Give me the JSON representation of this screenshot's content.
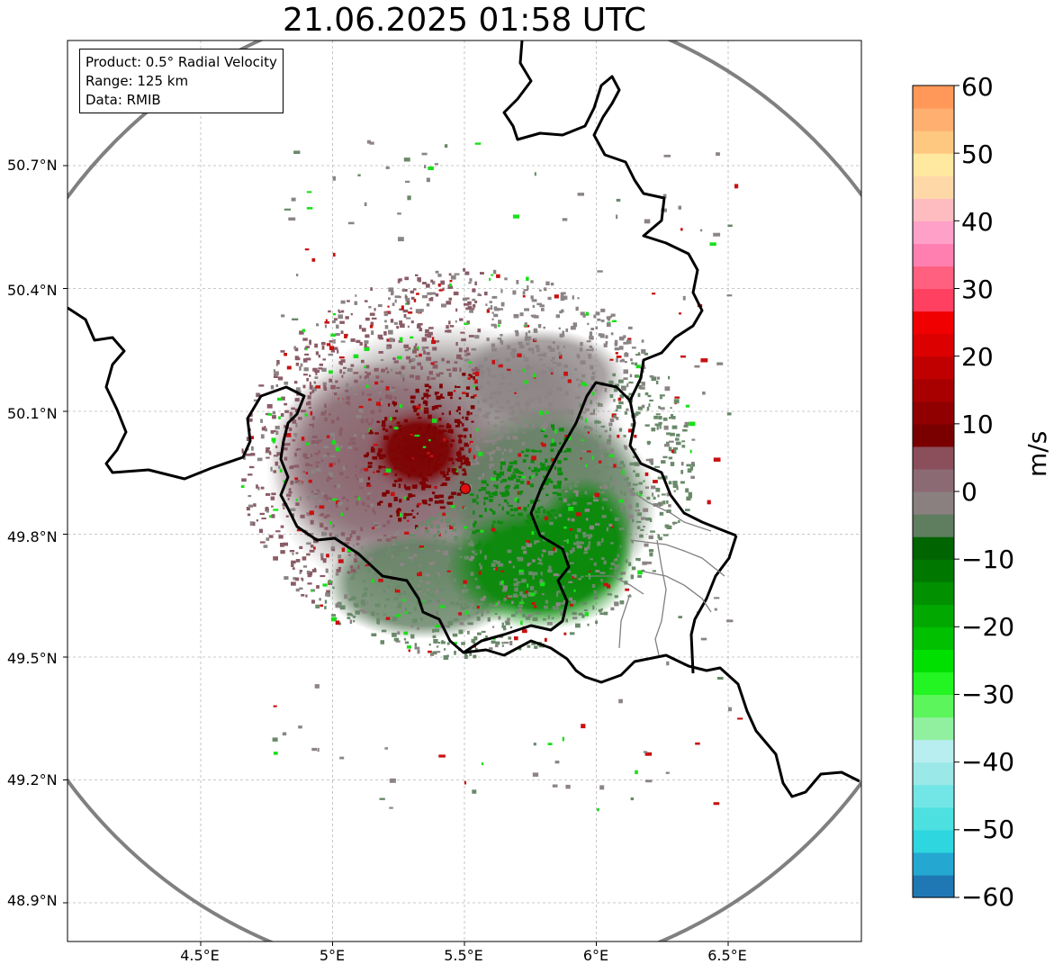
{
  "title": "21.06.2025 01:58 UTC",
  "info_box": {
    "product": "Product: 0.5° Radial Velocity",
    "range": "Range: 125 km",
    "data": "Data: RMIB"
  },
  "map_view": {
    "lon_range": [
      4.0,
      7.0
    ],
    "lat_range": [
      48.8,
      50.95
    ],
    "radar_site": {
      "lon": 5.5,
      "lat": 49.91,
      "marker_color": "#e01010"
    },
    "range_ring_color": "#808080",
    "border_color": "#000000",
    "subregion_border_color": "#808080",
    "grid": true
  },
  "axes": {
    "lat_ticks": [
      "50.7°N",
      "50.4°N",
      "50.1°N",
      "49.8°N",
      "49.5°N",
      "49.2°N",
      "48.9°N"
    ],
    "lon_ticks": [
      "4.5°E",
      "5°E",
      "5.5°E",
      "6°E",
      "6.5°E"
    ]
  },
  "colorbar": {
    "unit": "m/s",
    "ticks": [
      "60",
      "50",
      "40",
      "30",
      "20",
      "10",
      "0",
      "−10",
      "−20",
      "−30",
      "−40",
      "−50",
      "−60"
    ],
    "range": [
      -60,
      60
    ],
    "colors": [
      "#1f78b4",
      "#24a8d2",
      "#2ed6e0",
      "#4de0e0",
      "#72e6e6",
      "#9ae8e8",
      "#b8eef0",
      "#90f0a0",
      "#5cf55c",
      "#22f522",
      "#00e000",
      "#00c000",
      "#00a800",
      "#009000",
      "#007800",
      "#006400",
      "#5f7d5f",
      "#8a8080",
      "#8c6a74",
      "#8a4f5a",
      "#7a0000",
      "#900000",
      "#a80000",
      "#c00000",
      "#dc0000",
      "#f00000",
      "#ff4060",
      "#ff6080",
      "#ff80b0",
      "#ffa0c8",
      "#ffbcc0",
      "#ffd8a8",
      "#ffe8a0",
      "#ffc880",
      "#ffb070",
      "#ff9858"
    ]
  },
  "echo_colors": {
    "outbound_strong": "#7d0303",
    "outbound_weak": "#8a5c66",
    "near_zero": "#8c8484",
    "inbound_weak": "#6a8a6a",
    "inbound_strong": "#0c8a0c",
    "speckle_red": "#c81010",
    "speckle_green": "#18e018"
  },
  "chart_data": {
    "type": "heatmap",
    "title": "21.06.2025 01:58 UTC",
    "xlabel": "",
    "ylabel": "",
    "x_ticks": [
      "4.5°E",
      "5°E",
      "5.5°E",
      "6°E",
      "6.5°E"
    ],
    "y_ticks": [
      "50.7°N",
      "50.4°N",
      "50.1°N",
      "49.8°N",
      "49.5°N",
      "49.2°N",
      "48.9°N"
    ],
    "colorbar_label": "m/s",
    "colorbar_range": [
      -60,
      60
    ],
    "grid": true
  }
}
